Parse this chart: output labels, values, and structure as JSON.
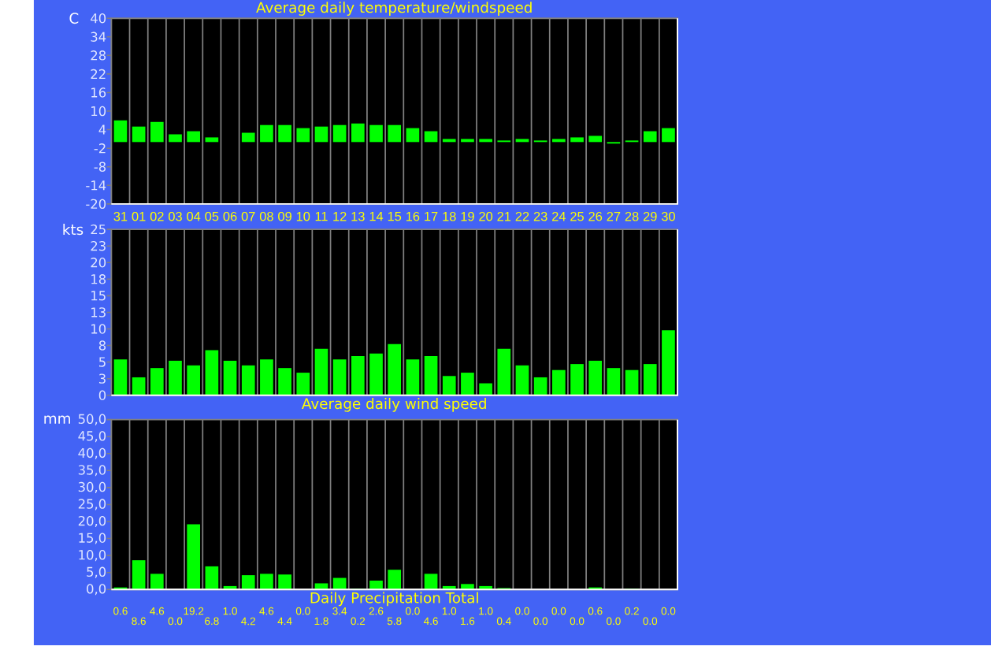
{
  "chart_data": [
    {
      "type": "bar",
      "title": "Average daily temperature/windspeed",
      "ylabel": "C",
      "categories": [
        "31",
        "01",
        "02",
        "03",
        "04",
        "05",
        "06",
        "07",
        "08",
        "09",
        "10",
        "11",
        "12",
        "13",
        "14",
        "15",
        "16",
        "17",
        "18",
        "19",
        "20",
        "21",
        "22",
        "23",
        "24",
        "25",
        "26",
        "27",
        "28",
        "29",
        "30"
      ],
      "series": [
        {
          "color": "#00ff00",
          "values": [
            7,
            5,
            6.5,
            2.5,
            3.5,
            1.5,
            0,
            3,
            5.5,
            5.5,
            4.5,
            5,
            5.5,
            6,
            5.5,
            5.5,
            4.5,
            3.5,
            1,
            1,
            1,
            0.5,
            1,
            0.5,
            1,
            1.5,
            2,
            -0.5,
            0.5,
            3.5,
            4.5
          ]
        }
      ],
      "ylim": [
        -20,
        40
      ],
      "yticks": [
        -20,
        -14,
        -8,
        -2,
        4,
        10,
        16,
        22,
        28,
        34,
        40
      ],
      "grid": "x"
    },
    {
      "type": "bar",
      "title": "Average daily wind speed",
      "ylabel": "kts",
      "categories": [
        "31",
        "01",
        "02",
        "03",
        "04",
        "05",
        "06",
        "07",
        "08",
        "09",
        "10",
        "11",
        "12",
        "13",
        "14",
        "15",
        "16",
        "17",
        "18",
        "19",
        "20",
        "21",
        "22",
        "23",
        "24",
        "25",
        "26",
        "27",
        "28",
        "29",
        "30"
      ],
      "series": [
        {
          "color": "#00ff00",
          "values": [
            5.4,
            2.7,
            4.1,
            5.2,
            4.5,
            6.8,
            5.2,
            4.5,
            5.4,
            4.1,
            3.4,
            7.0,
            5.4,
            5.9,
            6.3,
            7.7,
            5.4,
            5.9,
            2.9,
            3.4,
            1.8,
            7.0,
            4.5,
            2.7,
            3.8,
            4.7,
            5.2,
            4.1,
            3.8,
            4.7,
            9.8
          ]
        }
      ],
      "ylim": [
        0,
        25
      ],
      "yticks": [
        0,
        {
          "value": 2.5,
          "label": "3"
        },
        5,
        {
          "value": 7.5,
          "label": "8"
        },
        10,
        {
          "value": 12.5,
          "label": "13"
        },
        15,
        {
          "value": 17.5,
          "label": "18"
        },
        20,
        {
          "value": 22.5,
          "label": "23"
        },
        25
      ],
      "grid": "x",
      "tick_labels": "y"
    },
    {
      "type": "bar",
      "title": "Daily Precipitation Total",
      "ylabel": "mm",
      "categories": [
        "31",
        "01",
        "02",
        "03",
        "04",
        "05",
        "06",
        "07",
        "08",
        "09",
        "10",
        "11",
        "12",
        "13",
        "14",
        "15",
        "16",
        "17",
        "18",
        "19",
        "20",
        "21",
        "22",
        "23",
        "24",
        "25",
        "26",
        "27",
        "28",
        "29",
        "30"
      ],
      "series": [
        {
          "color": "#00ff00",
          "values": [
            0.6,
            8.6,
            4.6,
            0.0,
            19.2,
            6.8,
            1.0,
            4.2,
            4.6,
            4.4,
            0.0,
            1.8,
            3.4,
            0.2,
            2.6,
            5.8,
            0.0,
            4.6,
            1.0,
            1.6,
            1.0,
            0.4,
            0.0,
            0.0,
            0.0,
            0.0,
            0.6,
            0.0,
            0.2,
            0.0,
            0.0
          ],
          "value_labels": [
            "0.6",
            "8.6",
            "4.6",
            "0.0",
            "19.2",
            "6.8",
            "1.0",
            "4.2",
            "4.6",
            "4.4",
            "0.0",
            "1.8",
            "3.4",
            "0.2",
            "2.6",
            "5.8",
            "0.0",
            "4.6",
            "1.0",
            "1.6",
            "1.0",
            "0.4",
            "0.0",
            "0.0",
            "0.0",
            "0.0",
            "0.6",
            "0.0",
            "0.2",
            "0.0",
            "0.0"
          ]
        }
      ],
      "ylim": [
        0,
        50
      ],
      "yticks": [
        {
          "value": 0,
          "label": "0,0"
        },
        {
          "value": 5,
          "label": "5,0"
        },
        {
          "value": 10,
          "label": "10,0"
        },
        {
          "value": 15,
          "label": "15,0"
        },
        {
          "value": 20,
          "label": "20,0"
        },
        {
          "value": 25,
          "label": "25,0"
        },
        {
          "value": 30,
          "label": "30,0"
        },
        {
          "value": 35,
          "label": "35,0"
        },
        {
          "value": 40,
          "label": "40,0"
        },
        {
          "value": 45,
          "label": "45,0"
        },
        {
          "value": 50,
          "label": "50,0"
        }
      ],
      "grid": "x",
      "tick_labels": "y"
    }
  ]
}
